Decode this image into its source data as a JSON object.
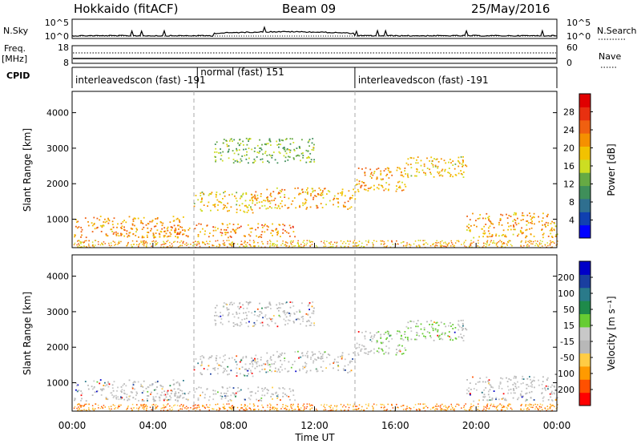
{
  "header": {
    "station": "Hokkaido (fitACF)",
    "beam": "Beam 09",
    "date": "25/May/2016"
  },
  "side_labels": {
    "nsky": "N.Sky",
    "freq": "Freq.",
    "freq_unit": "[MHz]",
    "cpid": "CPID",
    "nsearch": "N.Search",
    "nave": "Nave"
  },
  "noise_panel": {
    "left_ticks": [
      "10^5",
      "10^0"
    ],
    "right_ticks": [
      "10^5",
      "10^0"
    ]
  },
  "freq_panel": {
    "left_ticks": [
      "18",
      "8"
    ],
    "right_ticks": [
      "60",
      "0"
    ]
  },
  "cpid_panel": {
    "segments": [
      {
        "label": "interleavedscon (fast) -191",
        "start": 0,
        "end": 6.2
      },
      {
        "label": "normal (fast) 151",
        "start": 6.2,
        "end": 14
      },
      {
        "label": "interleavedscon (fast) -191",
        "start": 14,
        "end": 24
      }
    ]
  },
  "x_axis": {
    "label": "Time UT",
    "ticks": [
      "00:00",
      "04:00",
      "08:00",
      "12:00",
      "16:00",
      "20:00",
      "00:00"
    ]
  },
  "colors": {
    "power_scale": [
      "#0000ff",
      "#1040b0",
      "#2f6f8f",
      "#3f8f5a",
      "#66aa44",
      "#ccdd22",
      "#f2c200",
      "#f59000",
      "#f06010",
      "#e83010",
      "#e00000"
    ],
    "velocity_scale": [
      "#ff0000",
      "#ff5000",
      "#ff9a00",
      "#ffcc44",
      "#b8b8b8",
      "#c8c8c8",
      "#66cc33",
      "#1e8a4a",
      "#2a7a8a",
      "#1a3fa0",
      "#0000c8"
    ]
  },
  "chart_data": [
    {
      "type": "heatmap",
      "name": "power-panel",
      "ylabel": "Slant Range [km]",
      "ylim": [
        200,
        4600
      ],
      "xlim": [
        0,
        24
      ],
      "y_ticks": [
        "1000",
        "2000",
        "3000",
        "4000"
      ],
      "colorbar": {
        "label": "Power [dB]",
        "ticks": [
          "4",
          "8",
          "12",
          "16",
          "20",
          "24",
          "28"
        ],
        "range": [
          0,
          32
        ]
      },
      "bands": [
        {
          "t": [
            0,
            5.5
          ],
          "r": [
            500,
            1100
          ],
          "level": 27
        },
        {
          "t": [
            4.5,
            11
          ],
          "r": [
            500,
            900
          ],
          "level": 28
        },
        {
          "t": [
            6,
            9
          ],
          "r": [
            1200,
            1800
          ],
          "level": 24
        },
        {
          "t": [
            9,
            14
          ],
          "r": [
            1300,
            1900
          ],
          "level": 26
        },
        {
          "t": [
            14,
            16.5
          ],
          "r": [
            1800,
            2500
          ],
          "level": 27
        },
        {
          "t": [
            16.5,
            19.5
          ],
          "r": [
            2200,
            2800
          ],
          "level": 24
        },
        {
          "t": [
            19.5,
            24
          ],
          "r": [
            500,
            1200
          ],
          "level": 26
        },
        {
          "t": [
            7,
            12
          ],
          "r": [
            2600,
            3300
          ],
          "level": 18
        }
      ]
    },
    {
      "type": "heatmap",
      "name": "velocity-panel",
      "ylabel": "Slant Range [km]",
      "ylim": [
        200,
        4600
      ],
      "xlim": [
        0,
        24
      ],
      "y_ticks": [
        "1000",
        "2000",
        "3000",
        "4000"
      ],
      "colorbar": {
        "label": "Velocity [m s⁻¹]",
        "ticks": [
          "200",
          "100",
          "50",
          "15",
          "-15",
          "-50",
          "-100",
          "-200"
        ],
        "range": [
          -250,
          250
        ]
      }
    }
  ]
}
